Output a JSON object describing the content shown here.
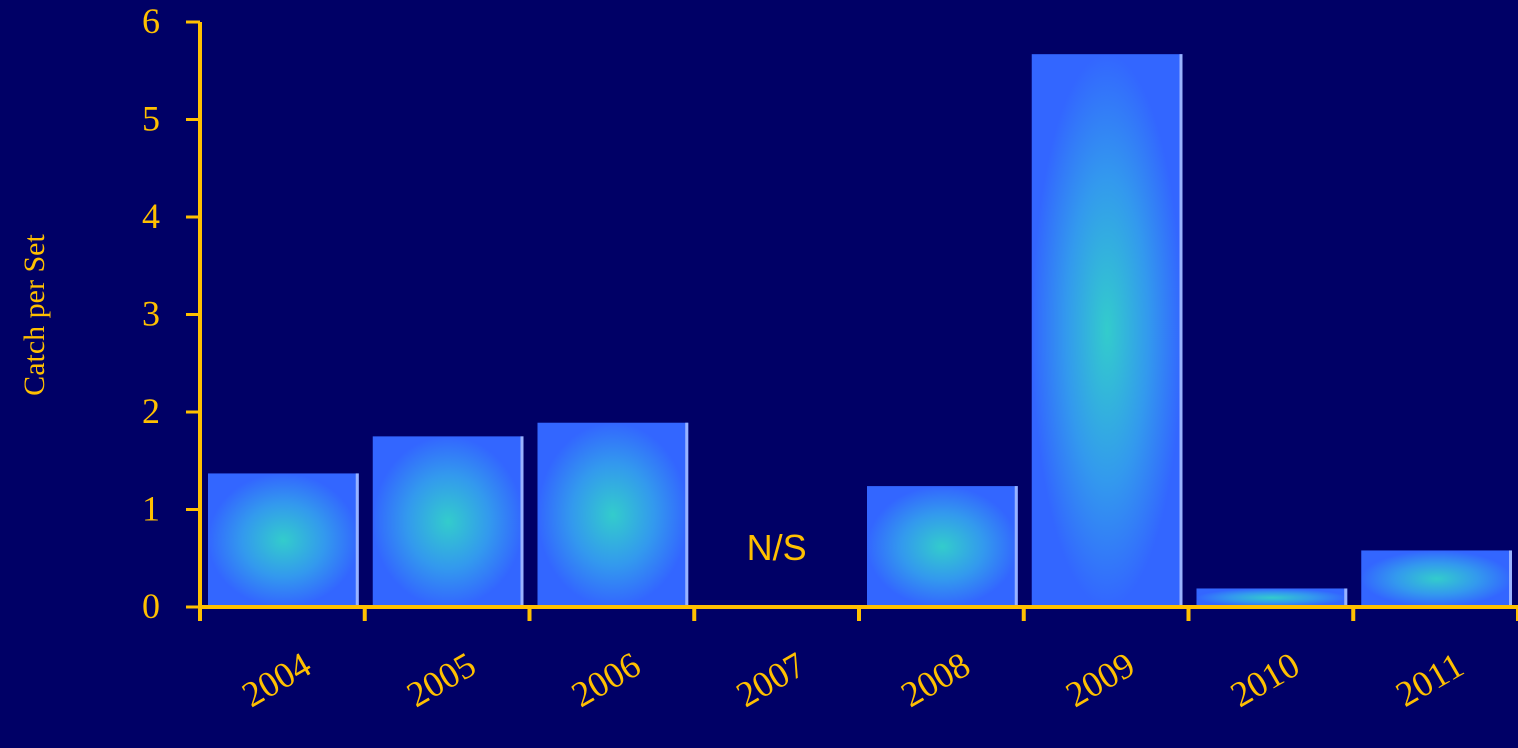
{
  "chart_data": {
    "type": "bar",
    "categories": [
      "2004",
      "2005",
      "2006",
      "2007",
      "2008",
      "2009",
      "2010",
      "2011"
    ],
    "values": [
      1.37,
      1.75,
      1.89,
      null,
      1.24,
      5.67,
      0.19,
      0.58
    ],
    "ylabel": "Catch per Set",
    "xlabel": "",
    "title": "",
    "ylim": [
      0,
      6
    ],
    "yticks": [
      "0",
      "1",
      "2",
      "3",
      "4",
      "5",
      "6"
    ],
    "annotations": [
      {
        "category": "2007",
        "text": "N/S"
      }
    ],
    "grid": false,
    "legend": "none",
    "colors": {
      "background": "#000066",
      "axis": "#FFC000",
      "text": "#FFC000",
      "bar_edge": "#3366FF",
      "bar_center": "#33CCCC",
      "bar_highlight": "#99B3FF"
    }
  }
}
